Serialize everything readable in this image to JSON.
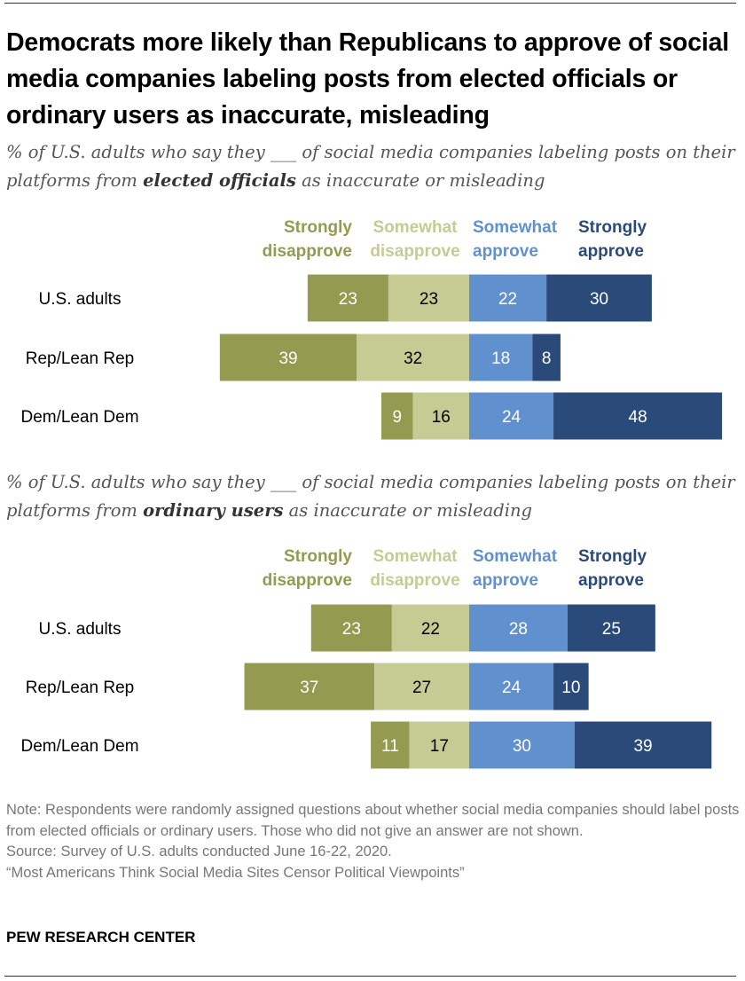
{
  "title": "Democrats more likely than Republicans to approve of social media companies labeling posts from elected officials or ordinary users as inaccurate, misleading",
  "chart_data": [
    {
      "type": "bar",
      "orientation": "horizontal-diverging-stacked",
      "subtitle_pre": "% of U.S. adults who say they ___ of social media companies labeling posts on their platforms from ",
      "subtitle_bold": "elected officials",
      "subtitle_post": " as inaccurate or misleading",
      "categories": [
        "U.S. adults",
        "Rep/Lean Rep",
        "Dem/Lean Dem"
      ],
      "series": [
        {
          "name": "Strongly disapprove",
          "values": [
            23,
            39,
            9
          ]
        },
        {
          "name": "Somewhat disapprove",
          "values": [
            23,
            32,
            16
          ]
        },
        {
          "name": "Somewhat approve",
          "values": [
            22,
            18,
            24
          ]
        },
        {
          "name": "Strongly approve",
          "values": [
            30,
            8,
            48
          ]
        }
      ]
    },
    {
      "type": "bar",
      "orientation": "horizontal-diverging-stacked",
      "subtitle_pre": "% of U.S. adults who say they ___ of social media companies labeling posts on their platforms from ",
      "subtitle_bold": "ordinary users",
      "subtitle_post": " as inaccurate or misleading",
      "categories": [
        "U.S. adults",
        "Rep/Lean Rep",
        "Dem/Lean Dem"
      ],
      "series": [
        {
          "name": "Strongly disapprove",
          "values": [
            23,
            37,
            11
          ]
        },
        {
          "name": "Somewhat disapprove",
          "values": [
            22,
            27,
            17
          ]
        },
        {
          "name": "Somewhat approve",
          "values": [
            28,
            24,
            30
          ]
        },
        {
          "name": "Strongly approve",
          "values": [
            25,
            10,
            39
          ]
        }
      ]
    }
  ],
  "legend": [
    {
      "line1": "Strongly",
      "line2": "disapprove"
    },
    {
      "line1": "Somewhat",
      "line2": "disapprove"
    },
    {
      "line1": "Somewhat",
      "line2": "approve"
    },
    {
      "line1": "Strongly",
      "line2": "approve"
    }
  ],
  "colors": {
    "strongly_disapprove": "#949B50",
    "somewhat_disapprove": "#C6CB94",
    "somewhat_approve": "#6190CF",
    "strongly_approve": "#2A4A7A"
  },
  "notes": {
    "note": "Note: Respondents were randomly assigned questions about whether social media companies should label posts from elected officials or ordinary users. Those who did not give an answer are not shown.",
    "source": "Source: Survey of U.S. adults conducted June 16-22, 2020.",
    "report": "“Most Americans Think Social Media Sites Censor Political Viewpoints”"
  },
  "brand": "PEW RESEARCH CENTER"
}
